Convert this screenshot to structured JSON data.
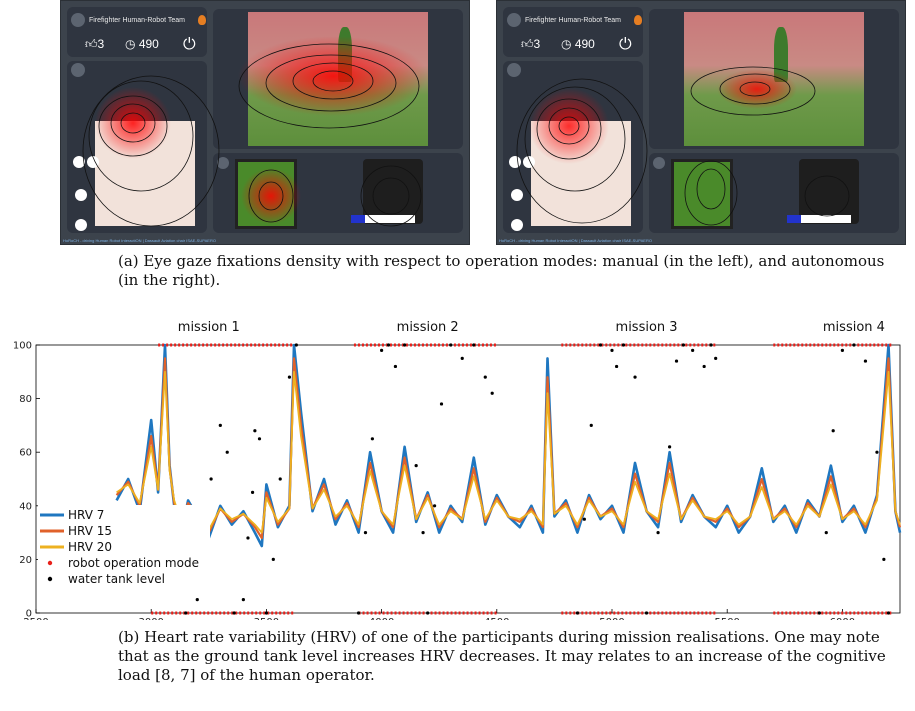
{
  "screens": [
    {
      "key": "left",
      "team_title": "Firefighter Human-Robot Team",
      "likes": "3",
      "timer": "490",
      "footer": "HoRoCH - driving Human Robot InteractiON | Dassault Aviation chair   ISAE-SUPAERO",
      "battery_level": 0.22
    },
    {
      "key": "right",
      "team_title": "Firefighter Human-Robot Team",
      "likes": "3",
      "timer": "490",
      "footer": "HoRoCH - driving Human Robot InteractiON | Dassault Aviation chair   ISAE-SUPAERO",
      "battery_level": 0.22
    }
  ],
  "captions": {
    "a": "(a) Eye gaze fixations density with respect to operation modes: manual (in the left), and autonomous (in the right).",
    "b": "(b) Heart rate variability (HRV) of one of the participants during mission realisations. One may note that as the ground tank level increases HRV decreases. It may relates to an increase of the cognitive load [8, 7] of the human operator."
  },
  "colors": {
    "hrv7": "#1f77c0",
    "hrv15": "#e0612a",
    "hrv20": "#edb120",
    "robot_mode": "#e8201a",
    "water": "#000000",
    "panel": "#3c434c"
  },
  "chart_data": {
    "type": "line",
    "title": "",
    "xlabel": "",
    "ylabel": "",
    "xlim": [
      2500,
      6250
    ],
    "ylim": [
      0,
      100
    ],
    "x_ticks": [
      2500,
      3000,
      3500,
      4000,
      4500,
      5000,
      5500,
      6000
    ],
    "y_ticks": [
      0,
      20,
      40,
      60,
      80,
      100
    ],
    "missions": [
      {
        "label": "mission 1",
        "center": 3250
      },
      {
        "label": "mission 2",
        "center": 4200
      },
      {
        "label": "mission 3",
        "center": 5150
      },
      {
        "label": "mission 4",
        "center": 6050
      }
    ],
    "legend": {
      "placement": "left",
      "entries": [
        "HRV 7",
        "HRV 15",
        "HRV 20",
        "robot operation mode",
        "water tank level"
      ]
    },
    "series": [
      {
        "name": "HRV 7",
        "x": [
          2850,
          2900,
          2950,
          3000,
          3030,
          3060,
          3080,
          3100,
          3130,
          3160,
          3200,
          3250,
          3300,
          3350,
          3400,
          3450,
          3480,
          3500,
          3550,
          3600,
          3620,
          3650,
          3700,
          3750,
          3800,
          3850,
          3900,
          3950,
          4000,
          4050,
          4100,
          4150,
          4200,
          4250,
          4300,
          4350,
          4400,
          4450,
          4500,
          4550,
          4600,
          4650,
          4700,
          4720,
          4750,
          4800,
          4850,
          4900,
          4950,
          5000,
          5050,
          5100,
          5150,
          5200,
          5250,
          5300,
          5350,
          5400,
          5450,
          5500,
          5550,
          5600,
          5650,
          5700,
          5750,
          5800,
          5850,
          5900,
          5950,
          6000,
          6050,
          6100,
          6150,
          6200,
          6230,
          6250
        ],
        "y": [
          42,
          50,
          38,
          72,
          45,
          100,
          55,
          40,
          30,
          42,
          36,
          28,
          40,
          33,
          38,
          30,
          25,
          48,
          32,
          40,
          100,
          75,
          38,
          50,
          33,
          42,
          30,
          60,
          38,
          30,
          62,
          34,
          45,
          30,
          40,
          34,
          58,
          33,
          44,
          36,
          32,
          40,
          30,
          95,
          36,
          42,
          30,
          44,
          35,
          40,
          30,
          56,
          38,
          32,
          60,
          34,
          44,
          36,
          32,
          40,
          30,
          36,
          54,
          34,
          40,
          30,
          42,
          36,
          55,
          34,
          40,
          30,
          44,
          100,
          38,
          30
        ]
      },
      {
        "name": "HRV 15",
        "x": [
          2850,
          2900,
          2950,
          3000,
          3030,
          3060,
          3080,
          3100,
          3130,
          3160,
          3200,
          3250,
          3300,
          3350,
          3400,
          3450,
          3480,
          3500,
          3550,
          3600,
          3620,
          3650,
          3700,
          3750,
          3800,
          3850,
          3900,
          3950,
          4000,
          4050,
          4100,
          4150,
          4200,
          4250,
          4300,
          4350,
          4400,
          4450,
          4500,
          4550,
          4600,
          4650,
          4700,
          4720,
          4750,
          4800,
          4850,
          4900,
          4950,
          5000,
          5050,
          5100,
          5150,
          5200,
          5250,
          5300,
          5350,
          5400,
          5450,
          5500,
          5550,
          5600,
          5650,
          5700,
          5750,
          5800,
          5850,
          5900,
          5950,
          6000,
          6050,
          6100,
          6150,
          6200,
          6230,
          6250
        ],
        "y": [
          44,
          49,
          40,
          66,
          46,
          95,
          54,
          41,
          33,
          41,
          37,
          30,
          39,
          34,
          37,
          32,
          28,
          45,
          33,
          39,
          95,
          70,
          39,
          48,
          35,
          41,
          32,
          56,
          38,
          32,
          58,
          35,
          44,
          32,
          39,
          35,
          54,
          34,
          43,
          36,
          34,
          39,
          32,
          88,
          37,
          41,
          32,
          43,
          36,
          39,
          32,
          52,
          38,
          34,
          56,
          35,
          43,
          36,
          34,
          39,
          32,
          36,
          50,
          35,
          39,
          32,
          41,
          36,
          51,
          35,
          39,
          32,
          43,
          95,
          38,
          32
        ]
      },
      {
        "name": "HRV 20",
        "x": [
          2850,
          2900,
          2950,
          3000,
          3030,
          3060,
          3080,
          3100,
          3130,
          3160,
          3200,
          3250,
          3300,
          3350,
          3400,
          3450,
          3480,
          3500,
          3550,
          3600,
          3620,
          3650,
          3700,
          3750,
          3800,
          3850,
          3900,
          3950,
          4000,
          4050,
          4100,
          4150,
          4200,
          4250,
          4300,
          4350,
          4400,
          4450,
          4500,
          4550,
          4600,
          4650,
          4700,
          4720,
          4750,
          4800,
          4850,
          4900,
          4950,
          5000,
          5050,
          5100,
          5150,
          5200,
          5250,
          5300,
          5350,
          5400,
          5450,
          5500,
          5550,
          5600,
          5650,
          5700,
          5750,
          5800,
          5850,
          5900,
          5950,
          6000,
          6050,
          6100,
          6150,
          6200,
          6230,
          6250
        ],
        "y": [
          45,
          48,
          41,
          62,
          46,
          90,
          53,
          42,
          34,
          40,
          38,
          31,
          39,
          35,
          37,
          33,
          30,
          43,
          34,
          39,
          90,
          66,
          39,
          46,
          36,
          40,
          33,
          53,
          38,
          33,
          55,
          35,
          43,
          33,
          38,
          35,
          51,
          35,
          42,
          36,
          35,
          38,
          33,
          82,
          37,
          40,
          33,
          42,
          36,
          38,
          33,
          49,
          38,
          35,
          52,
          35,
          42,
          36,
          35,
          38,
          33,
          36,
          47,
          35,
          38,
          33,
          40,
          36,
          48,
          35,
          38,
          33,
          42,
          90,
          38,
          33
        ]
      },
      {
        "name": "robot operation mode",
        "segments": [
          {
            "x0": 3030,
            "x1": 3620,
            "y": 100
          },
          {
            "x0": 3000,
            "x1": 3620,
            "y": 0
          },
          {
            "x0": 3880,
            "x1": 4500,
            "y": 100
          },
          {
            "x0": 3900,
            "x1": 4500,
            "y": 0
          },
          {
            "x0": 4780,
            "x1": 5450,
            "y": 100
          },
          {
            "x0": 4780,
            "x1": 5450,
            "y": 0
          },
          {
            "x0": 5700,
            "x1": 6220,
            "y": 100
          },
          {
            "x0": 5700,
            "x1": 6220,
            "y": 0
          }
        ]
      },
      {
        "name": "water tank level",
        "x": [
          2950,
          3000,
          3050,
          3100,
          3150,
          3200,
          3230,
          3260,
          3300,
          3330,
          3360,
          3400,
          3420,
          3440,
          3450,
          3470,
          3500,
          3530,
          3560,
          3600,
          3630,
          3900,
          3930,
          3960,
          4000,
          4030,
          4060,
          4100,
          4150,
          4180,
          4200,
          4230,
          4260,
          4300,
          4350,
          4400,
          4450,
          4480,
          4850,
          4880,
          4910,
          4950,
          5000,
          5020,
          5050,
          5100,
          5150,
          5200,
          5250,
          5280,
          5310,
          5350,
          5400,
          5430,
          5450,
          5900,
          5930,
          5960,
          6000,
          6050,
          6100,
          6150,
          6180,
          6200
        ],
        "y": [
          35,
          33,
          32,
          31,
          0,
          5,
          25,
          50,
          70,
          60,
          0,
          5,
          28,
          45,
          68,
          65,
          0,
          20,
          50,
          88,
          100,
          0,
          30,
          65,
          98,
          100,
          92,
          100,
          55,
          30,
          0,
          40,
          78,
          100,
          95,
          100,
          88,
          82,
          0,
          35,
          70,
          100,
          98,
          92,
          100,
          88,
          0,
          30,
          62,
          94,
          100,
          98,
          92,
          100,
          95,
          0,
          30,
          68,
          98,
          100,
          94,
          60,
          20,
          0
        ]
      }
    ]
  }
}
